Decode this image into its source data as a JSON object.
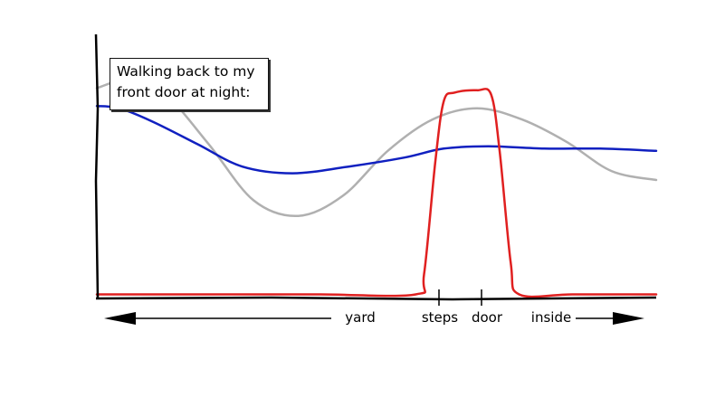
{
  "chart_data": {
    "type": "line",
    "title_lines": [
      "Walking back to my",
      "front door at night:"
    ],
    "xlabel": "",
    "ylabel": "",
    "x_axis_labels": [
      "yard",
      "steps",
      "door",
      "inside"
    ],
    "x_ticks": [
      "steps",
      "door"
    ],
    "ylim": [
      0,
      1
    ],
    "xlim": [
      0,
      100
    ],
    "grid": false,
    "series": [
      {
        "color": "#b0b0b0",
        "points": [
          [
            0,
            0.93
          ],
          [
            6,
            0.97
          ],
          [
            12,
            0.91
          ],
          [
            20,
            0.68
          ],
          [
            28,
            0.43
          ],
          [
            36,
            0.36
          ],
          [
            44,
            0.45
          ],
          [
            52,
            0.65
          ],
          [
            60,
            0.79
          ],
          [
            68,
            0.84
          ],
          [
            76,
            0.79
          ],
          [
            84,
            0.69
          ],
          [
            92,
            0.56
          ],
          [
            100,
            0.52
          ]
        ]
      },
      {
        "color": "#1020c0",
        "points": [
          [
            0,
            0.85
          ],
          [
            4,
            0.84
          ],
          [
            10,
            0.78
          ],
          [
            18,
            0.68
          ],
          [
            26,
            0.58
          ],
          [
            35,
            0.55
          ],
          [
            45,
            0.58
          ],
          [
            55,
            0.62
          ],
          [
            62,
            0.66
          ],
          [
            70,
            0.67
          ],
          [
            80,
            0.66
          ],
          [
            90,
            0.66
          ],
          [
            100,
            0.65
          ]
        ]
      },
      {
        "color": "#e02020",
        "points": [
          [
            0,
            0.01
          ],
          [
            20,
            0.01
          ],
          [
            40,
            0.01
          ],
          [
            57,
            0.01
          ],
          [
            58.5,
            0.1
          ],
          [
            60.5,
            0.6
          ],
          [
            62,
            0.87
          ],
          [
            64,
            0.91
          ],
          [
            68,
            0.92
          ],
          [
            70.5,
            0.9
          ],
          [
            72,
            0.65
          ],
          [
            74,
            0.15
          ],
          [
            75.5,
            0.01
          ],
          [
            85,
            0.01
          ],
          [
            100,
            0.01
          ]
        ]
      }
    ]
  }
}
